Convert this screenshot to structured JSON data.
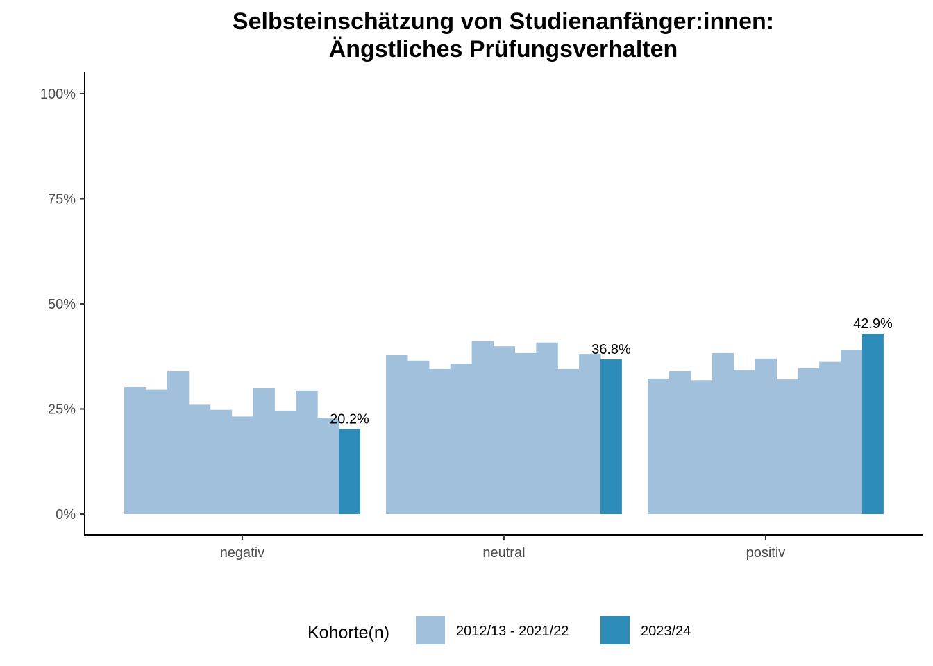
{
  "chart_data": {
    "type": "bar",
    "title_line1": "Selbsteinschätzung von Studienanfänger:innen:",
    "title_line2": "Ängstliches Prüfungsverhalten",
    "xlabel": "",
    "ylabel": "",
    "ylim": [
      0,
      100
    ],
    "y_ticks": [
      0,
      25,
      50,
      75,
      100
    ],
    "y_tick_labels": [
      "0%",
      "25%",
      "50%",
      "75%",
      "100%"
    ],
    "grid": false,
    "legend_position": "bottom",
    "legend_title": "Kohorte(n)",
    "categories": [
      "negativ",
      "neutral",
      "positiv"
    ],
    "series": [
      {
        "name": "2012/13 - 2021/22",
        "color": "#a1c0dc",
        "values": [
          [
            30.2,
            29.6,
            34.0,
            26.0,
            24.8,
            23.2,
            29.9,
            24.6,
            29.4,
            22.9
          ],
          [
            37.8,
            36.5,
            34.5,
            35.8,
            41.1,
            39.9,
            38.3,
            40.8,
            34.5,
            38.1
          ],
          [
            32.2,
            34.0,
            31.8,
            38.3,
            34.2,
            37.0,
            32.0,
            34.7,
            36.2,
            39.1
          ]
        ]
      },
      {
        "name": "2023/24",
        "color": "#2e8cb8",
        "values": [
          20.2,
          36.8,
          42.9
        ],
        "labels": [
          "20.2%",
          "36.8%",
          "42.9%"
        ]
      }
    ]
  }
}
